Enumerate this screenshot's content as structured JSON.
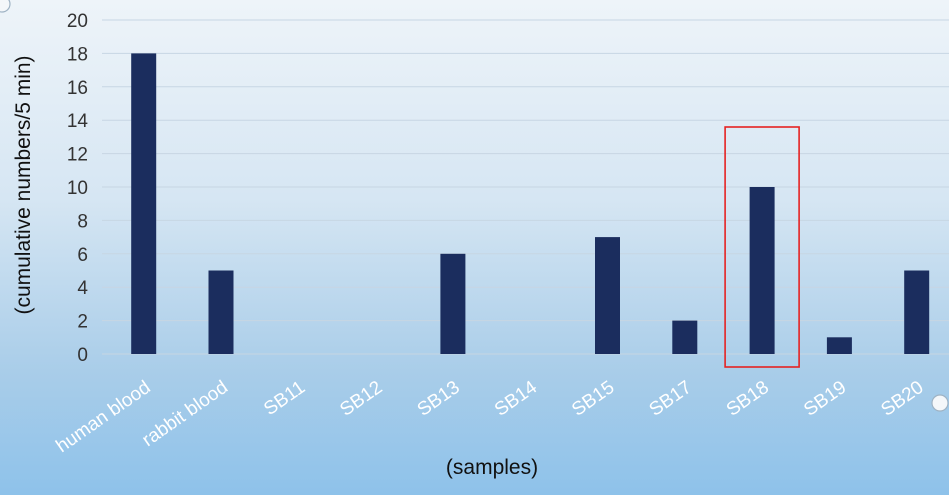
{
  "chart_data": {
    "type": "bar",
    "categories": [
      "human blood",
      "rabbit blood",
      "SB11",
      "SB12",
      "SB13",
      "SB14",
      "SB15",
      "SB17",
      "SB18",
      "SB19",
      "SB20"
    ],
    "values": [
      18,
      5,
      0,
      0,
      6,
      0,
      7,
      2,
      10,
      1,
      5
    ],
    "title": "",
    "xlabel": "(samples)",
    "ylabel": "(cumulative numbers/5 min)",
    "ylim": [
      0,
      20
    ],
    "yticks": [
      0,
      2,
      4,
      6,
      8,
      10,
      12,
      14,
      16,
      18,
      20
    ],
    "grid": true,
    "legend": "none",
    "highlight_category": "SB18",
    "colors": {
      "bar": "#1b2d5e",
      "highlight_box": "#e52222",
      "gridline": "#c7d6e3"
    }
  }
}
